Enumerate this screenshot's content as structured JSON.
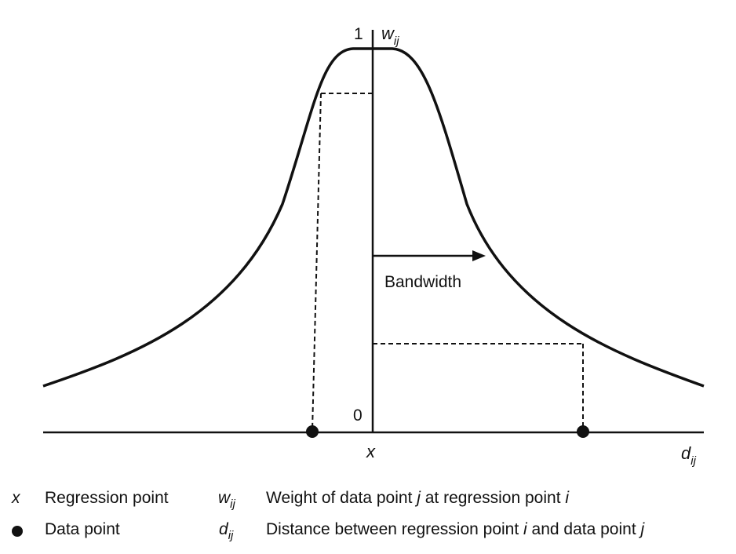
{
  "axes": {
    "y_top_tick": "1",
    "y_bottom_tick": "0",
    "y_label_main": "w",
    "y_label_sub": "ij",
    "x_center_label": "x",
    "x_label_main": "d",
    "x_label_sub": "ij"
  },
  "annotation": {
    "bandwidth_label": "Bandwidth"
  },
  "legend": {
    "regression_symbol": "x",
    "regression_label": "Regression point",
    "data_point_label": "Data point",
    "weight_symbol_main": "w",
    "weight_symbol_sub": "ij",
    "weight_desc_a": "Weight of data point ",
    "weight_desc_j": "j",
    "weight_desc_b": " at regression point ",
    "weight_desc_i": "i",
    "distance_symbol_main": "d",
    "distance_symbol_sub": "ij",
    "distance_desc_a": "Distance between regression point ",
    "distance_desc_i": "i",
    "distance_desc_b": " and data point ",
    "distance_desc_j": "j"
  },
  "colors": {
    "ink": "#111111",
    "background": "#ffffff"
  }
}
